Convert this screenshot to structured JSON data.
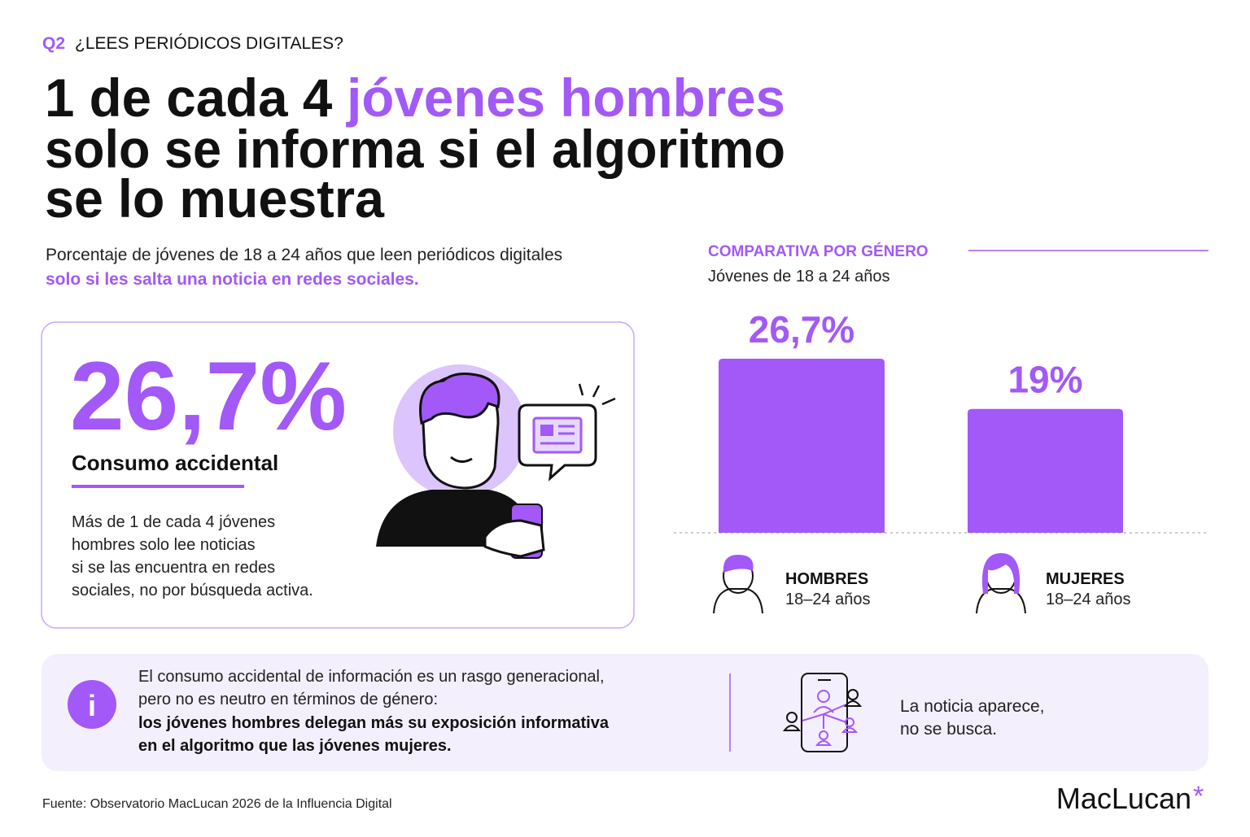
{
  "kicker": {
    "code": "Q2",
    "question": "¿LEES PERIÓDICOS DIGITALES?"
  },
  "headline": {
    "lead": "1 de cada 4",
    "highlight": "jóvenes hombres",
    "lines": [
      "solo se informa si el algoritmo",
      "se lo muestra"
    ]
  },
  "intro": {
    "text": "Porcentaje de jóvenes de 18 a 24 años que leen periódicos digitales",
    "highlight": "solo si les salta una noticia en redes sociales."
  },
  "card": {
    "stat": "26,7%",
    "label": "Consumo accidental",
    "body": [
      "Más de 1 de cada 4 jóvenes",
      "hombres solo lee noticias",
      "si se las encuentra en redes",
      "sociales, no por búsqueda activa."
    ]
  },
  "chart_data": {
    "type": "bar",
    "title": "COMPARATIVA POR GÉNERO",
    "subtitle": "Jóvenes de 18 a 24 años",
    "categories": [
      "HOMBRES",
      "MUJERES"
    ],
    "category_notes": [
      "18–24 años",
      "18–24 años"
    ],
    "values": [
      26.7,
      19
    ],
    "value_labels": [
      "26,7%",
      "19%"
    ],
    "color": "#a259f7"
  },
  "info": {
    "lines": [
      "El consumo accidental de información es un rasgo generacional,",
      "pero no es neutro en términos de género:"
    ],
    "bold_lines": [
      "los jóvenes hombres delegan más su exposición informativa",
      "en el algoritmo que las jóvenes mujeres."
    ],
    "aside": [
      "La noticia aparece,",
      "no se busca."
    ]
  },
  "footer": {
    "source": "Fuente: Observatorio MacLucan 2026 de la Influencia Digital",
    "brand": "MacLucan",
    "brand_mark": "*"
  }
}
